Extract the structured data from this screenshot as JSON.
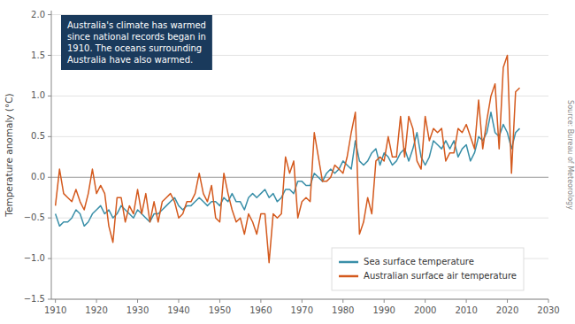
{
  "chart_data": {
    "type": "line",
    "ylabel": "Temperature anomaly (°C)",
    "annotations": [
      "Australia's climate has warmed\nsince national records began in\n1910. The oceans surrounding\nAustralia have also warmed.",
      "Source: Bureau of Meteorology"
    ],
    "x": [
      1910,
      1911,
      1912,
      1913,
      1914,
      1915,
      1916,
      1917,
      1918,
      1919,
      1920,
      1921,
      1922,
      1923,
      1924,
      1925,
      1926,
      1927,
      1928,
      1929,
      1930,
      1931,
      1932,
      1933,
      1934,
      1935,
      1936,
      1937,
      1938,
      1939,
      1940,
      1941,
      1942,
      1943,
      1944,
      1945,
      1946,
      1947,
      1948,
      1949,
      1950,
      1951,
      1952,
      1953,
      1954,
      1955,
      1956,
      1957,
      1958,
      1959,
      1960,
      1961,
      1962,
      1963,
      1964,
      1965,
      1966,
      1967,
      1968,
      1969,
      1970,
      1971,
      1972,
      1973,
      1974,
      1975,
      1976,
      1977,
      1978,
      1979,
      1980,
      1981,
      1982,
      1983,
      1984,
      1985,
      1986,
      1987,
      1988,
      1989,
      1990,
      1991,
      1992,
      1993,
      1994,
      1995,
      1996,
      1997,
      1998,
      1999,
      2000,
      2001,
      2002,
      2003,
      2004,
      2005,
      2006,
      2007,
      2008,
      2009,
      2010,
      2011,
      2012,
      2013,
      2014,
      2015,
      2016,
      2017,
      2018,
      2019,
      2020,
      2021,
      2022,
      2023
    ],
    "series": [
      {
        "name": "Sea surface temperature",
        "color": "#3a8fa8",
        "values": [
          -0.45,
          -0.6,
          -0.55,
          -0.55,
          -0.5,
          -0.4,
          -0.45,
          -0.6,
          -0.55,
          -0.45,
          -0.4,
          -0.35,
          -0.45,
          -0.4,
          -0.5,
          -0.45,
          -0.35,
          -0.4,
          -0.45,
          -0.5,
          -0.4,
          -0.45,
          -0.5,
          -0.55,
          -0.45,
          -0.45,
          -0.4,
          -0.35,
          -0.3,
          -0.25,
          -0.35,
          -0.4,
          -0.35,
          -0.35,
          -0.3,
          -0.25,
          -0.3,
          -0.35,
          -0.3,
          -0.3,
          -0.35,
          -0.25,
          -0.3,
          -0.2,
          -0.3,
          -0.3,
          -0.4,
          -0.25,
          -0.2,
          -0.25,
          -0.2,
          -0.15,
          -0.25,
          -0.2,
          -0.3,
          -0.25,
          -0.15,
          -0.15,
          -0.2,
          -0.05,
          -0.05,
          -0.1,
          -0.1,
          0.05,
          0.0,
          -0.05,
          0.05,
          0.1,
          0.05,
          0.1,
          0.2,
          0.15,
          0.1,
          0.45,
          0.2,
          0.15,
          0.2,
          0.3,
          0.35,
          0.15,
          0.3,
          0.25,
          0.15,
          0.2,
          0.3,
          0.35,
          0.2,
          0.35,
          0.55,
          0.25,
          0.15,
          0.25,
          0.45,
          0.4,
          0.35,
          0.45,
          0.35,
          0.45,
          0.25,
          0.35,
          0.4,
          0.2,
          0.3,
          0.5,
          0.45,
          0.55,
          0.8,
          0.55,
          0.5,
          0.65,
          0.55,
          0.35,
          0.55,
          0.6
        ]
      },
      {
        "name": "Australian surface air temperature",
        "color": "#d45a1e",
        "values": [
          -0.35,
          0.1,
          -0.2,
          -0.25,
          -0.3,
          -0.15,
          -0.3,
          -0.4,
          -0.2,
          0.1,
          -0.2,
          -0.1,
          -0.2,
          -0.6,
          -0.8,
          -0.25,
          -0.25,
          -0.55,
          -0.35,
          -0.45,
          -0.15,
          -0.45,
          -0.2,
          -0.55,
          -0.3,
          -0.55,
          -0.3,
          -0.25,
          -0.2,
          -0.3,
          -0.5,
          -0.45,
          -0.3,
          -0.3,
          -0.2,
          0.05,
          -0.2,
          -0.3,
          -0.1,
          -0.5,
          -0.55,
          0.05,
          -0.2,
          -0.4,
          -0.55,
          -0.5,
          -0.7,
          -0.45,
          -0.55,
          -0.7,
          -0.45,
          -0.45,
          -1.05,
          -0.45,
          -0.5,
          -0.45,
          0.25,
          0.05,
          0.2,
          -0.5,
          -0.3,
          -0.25,
          -0.3,
          0.55,
          0.25,
          -0.05,
          -0.05,
          0.0,
          0.15,
          0.1,
          0.05,
          0.25,
          0.55,
          0.8,
          -0.7,
          -0.55,
          -0.25,
          -0.45,
          0.2,
          0.25,
          0.2,
          0.5,
          0.25,
          0.25,
          0.75,
          0.25,
          0.75,
          0.6,
          0.2,
          0.1,
          0.75,
          0.45,
          0.6,
          0.55,
          0.6,
          0.2,
          0.3,
          0.3,
          0.6,
          0.55,
          0.65,
          0.5,
          0.35,
          0.95,
          0.35,
          0.7,
          1.0,
          1.15,
          0.35,
          1.35,
          1.5,
          0.05,
          1.05,
          1.1
        ]
      }
    ],
    "xlim": [
      1909,
      2030
    ],
    "ylim": [
      -1.5,
      2.05
    ],
    "xticks": [
      1910,
      1920,
      1930,
      1940,
      1950,
      1960,
      1970,
      1980,
      1990,
      2000,
      2010,
      2020,
      2030
    ],
    "yticks": [
      {
        "value": -1.5,
        "label": "−1.5"
      },
      {
        "value": -1.0,
        "label": "−1.0"
      },
      {
        "value": -0.5,
        "label": "−0.5"
      },
      {
        "value": 0.0,
        "label": "0.0"
      },
      0.5,
      {
        "value": 1.0,
        "label": "1.0"
      },
      1.5,
      {
        "value": 2.0,
        "label": "2.0"
      }
    ],
    "grid": true,
    "legend": "lower right"
  }
}
